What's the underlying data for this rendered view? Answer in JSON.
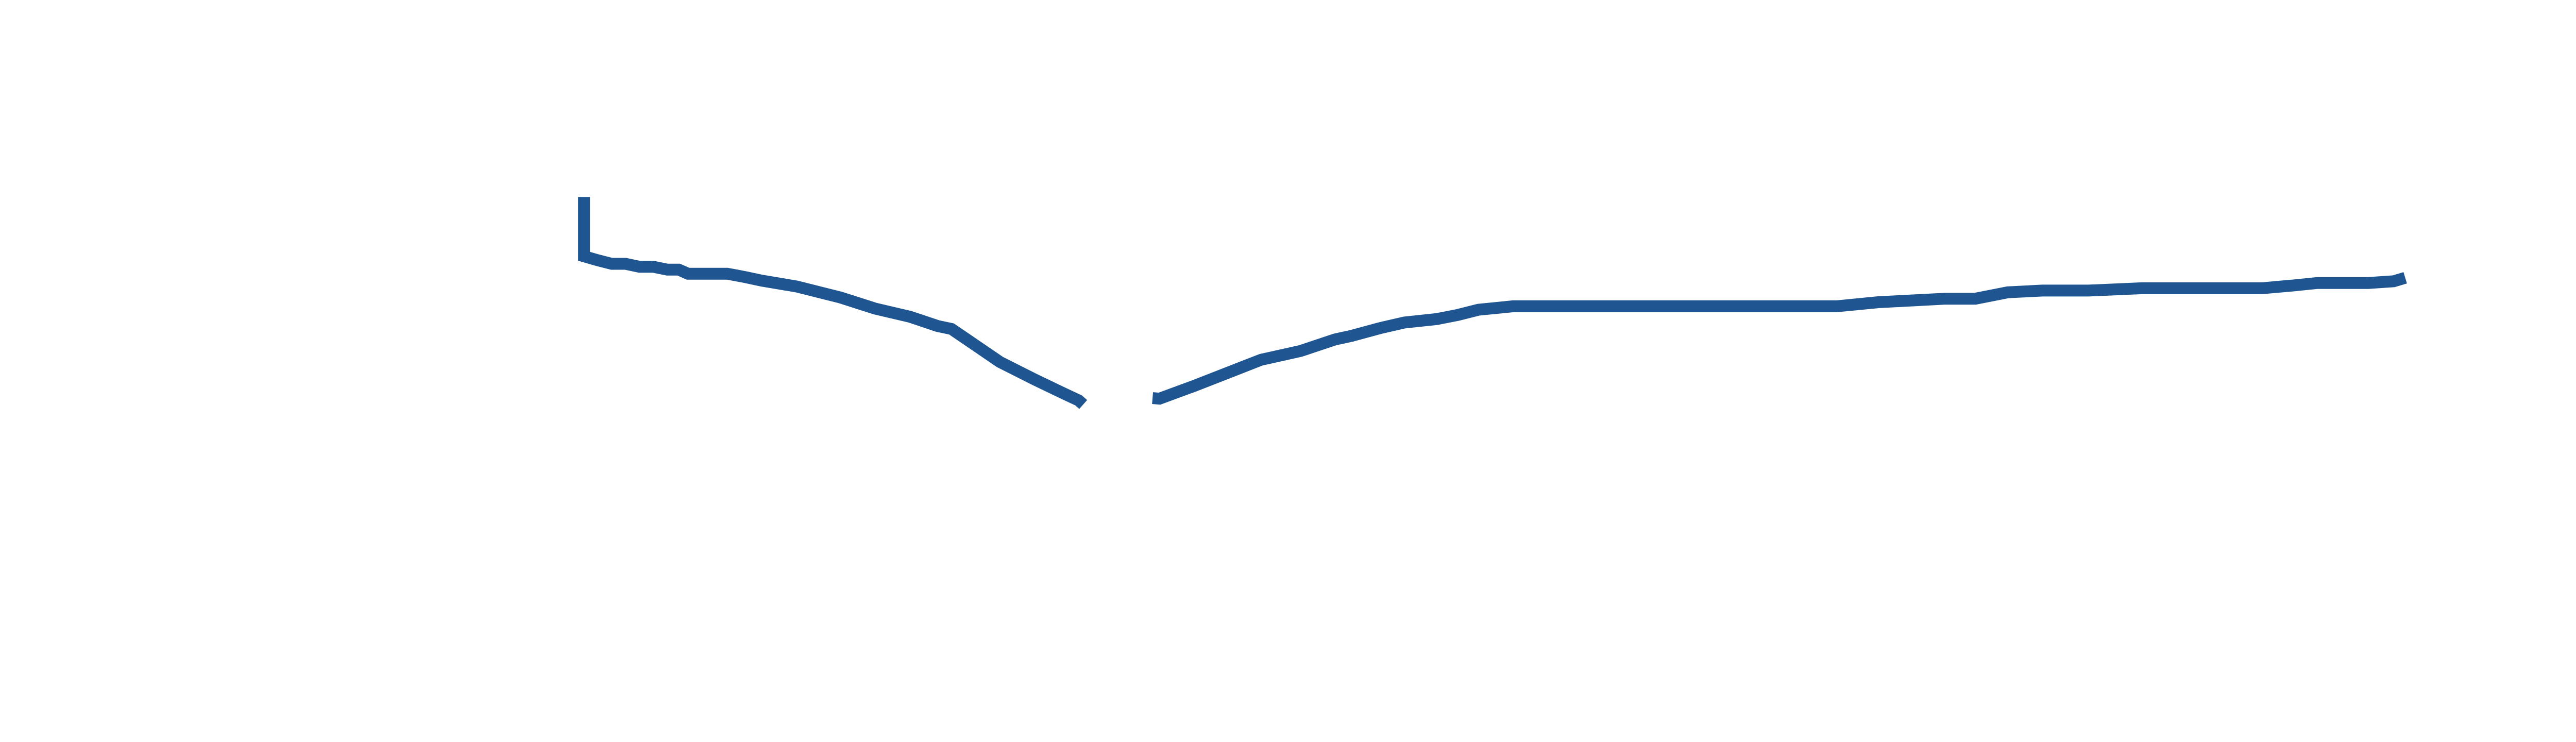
{
  "chart_data": {
    "type": "line",
    "title": "",
    "xlabel": "",
    "ylabel": "",
    "grid": false,
    "legend": "none",
    "axes_visible": false,
    "xlim": [
      0,
      1000
    ],
    "ylim": [
      0,
      1000
    ],
    "series": [
      {
        "color": "#1f5591",
        "segments": [
          [
            [
              174,
              818
            ],
            [
              174,
              716
            ],
            [
              180,
              709
            ],
            [
              186,
              703
            ],
            [
              192,
              703
            ],
            [
              198,
              698
            ],
            [
              204,
              698
            ],
            [
              210,
              693
            ],
            [
              215,
              693
            ],
            [
              219,
              686
            ],
            [
              222,
              686
            ],
            [
              229,
              686
            ],
            [
              236,
              686
            ],
            [
              240,
              683
            ],
            [
              244,
              680
            ],
            [
              251,
              674
            ],
            [
              266,
              664
            ],
            [
              285,
              645
            ],
            [
              300,
              626
            ],
            [
              315,
              612
            ],
            [
              327,
              596
            ],
            [
              333,
              591
            ],
            [
              340,
              572
            ],
            [
              354,
              534
            ],
            [
              369,
              504
            ],
            [
              381,
              481
            ],
            [
              388,
              468
            ],
            [
              390,
              461
            ]
          ],
          [
            [
              420,
              472
            ],
            [
              423,
              471
            ],
            [
              438,
              493
            ],
            [
              467,
              538
            ],
            [
              484,
              553
            ],
            [
              499,
              573
            ],
            [
              506,
              579
            ],
            [
              519,
              593
            ],
            [
              529,
              602
            ],
            [
              543,
              608
            ],
            [
              552,
              615
            ],
            [
              561,
              624
            ],
            [
              576,
              630
            ],
            [
              716,
              630
            ],
            [
              734,
              637
            ],
            [
              763,
              643
            ],
            [
              776,
              643
            ],
            [
              790,
              654
            ],
            [
              805,
              657
            ],
            [
              825,
              657
            ],
            [
              848,
              661
            ],
            [
              900,
              661
            ],
            [
              914,
              666
            ],
            [
              924,
              670
            ],
            [
              946,
              670
            ],
            [
              957,
              673
            ],
            [
              962,
              679
            ]
          ]
        ]
      }
    ]
  }
}
